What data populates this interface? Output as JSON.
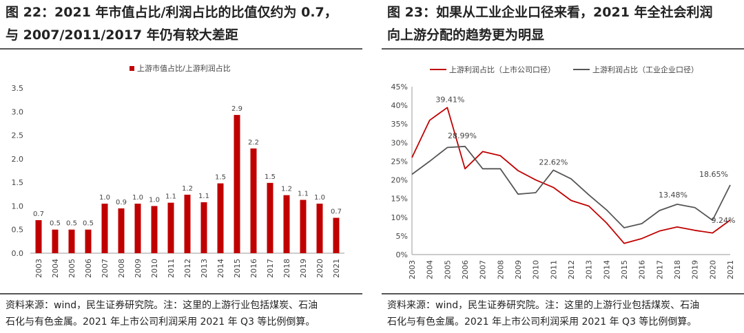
{
  "left": {
    "title_line1": "图 22：2021 年市值占比/利润占比的比值仅约为 0.7，",
    "title_line2": "与 2007/2011/2017 年仍有较大差距",
    "source_line1": "资料来源：wind，民生证券研究院。注：这里的上游行业包括煤炭、石油",
    "source_line2": "石化与有色金属。2021 年上市公司利润采用 2021 年 Q3 等比例倒算。"
  },
  "right": {
    "title_line1": "图 23：如果从工业企业口径来看，2021 年全社会利润",
    "title_line2": "向上游分配的趋势更为明显",
    "source_line1": "资料来源：wind，民生证券研究院。注：这里的上游行业包括煤炭、石油",
    "source_line2": "石化与有色金属。2021 年上市公司利润采用 2021 年 Q3 等比例倒算。"
  },
  "chart_data": [
    {
      "type": "bar",
      "categories": [
        "2003",
        "2004",
        "2005",
        "2006",
        "2007",
        "2008",
        "2009",
        "2010",
        "2011",
        "2012",
        "2013",
        "2014",
        "2015",
        "2016",
        "2017",
        "2018",
        "2019",
        "2020",
        "2021"
      ],
      "series": [
        {
          "name": "上游市值占比/上游利润占比",
          "values": [
            0.7,
            0.5,
            0.5,
            0.5,
            1.05,
            0.95,
            1.05,
            1.0,
            1.07,
            1.24,
            1.08,
            1.48,
            2.93,
            2.22,
            1.49,
            1.23,
            1.13,
            1.05,
            0.75
          ],
          "labels": [
            "0.7",
            "0.5",
            "0.5",
            "0.5",
            "1.0",
            "0.9",
            "1.0",
            "1.0",
            "1.1",
            "1.2",
            "1.1",
            "1.5",
            "2.9",
            "2.2",
            "1.5",
            "1.2",
            "1.1",
            "1.0",
            "0.7"
          ],
          "color": "#c00000"
        }
      ],
      "ylim": [
        0,
        3.5
      ],
      "yticks": [
        "0.0",
        "0.5",
        "1.0",
        "1.5",
        "2.0",
        "2.5",
        "3.0",
        "3.5"
      ],
      "grid": false,
      "legend_position": "top"
    },
    {
      "type": "line",
      "categories": [
        "2003",
        "2004",
        "2005",
        "2006",
        "2007",
        "2008",
        "2009",
        "2010",
        "2011",
        "2012",
        "2013",
        "2014",
        "2015",
        "2016",
        "2017",
        "2018",
        "2019",
        "2020",
        "2021"
      ],
      "series": [
        {
          "name": "上游利润占比（上市公司口径）",
          "values": [
            26.0,
            36.0,
            39.41,
            23.0,
            27.6,
            26.5,
            22.5,
            20.0,
            18.0,
            14.5,
            13.0,
            8.5,
            3.0,
            4.3,
            6.3,
            7.4,
            6.5,
            5.8,
            9.24
          ],
          "color": "#c00000"
        },
        {
          "name": "上游利润占比（工业企业口径）",
          "values": [
            21.5,
            25.0,
            28.7,
            28.99,
            23.0,
            23.0,
            16.2,
            16.6,
            22.62,
            20.3,
            16.0,
            12.0,
            7.2,
            8.3,
            11.8,
            13.48,
            12.6,
            9.2,
            18.65
          ],
          "color": "#555555"
        }
      ],
      "annotations": [
        {
          "text": "39.41%",
          "category": "2005",
          "value": 39.41
        },
        {
          "text": "28.99%",
          "category": "2006",
          "value": 28.99
        },
        {
          "text": "22.62%",
          "category": "2011",
          "value": 22.62
        },
        {
          "text": "13.48%",
          "category": "2018",
          "value": 13.48
        },
        {
          "text": "18.65%",
          "category": "2021",
          "value": 18.65
        },
        {
          "text": "9.24%",
          "category": "2021",
          "value": 9.24
        }
      ],
      "ylim": [
        0,
        45
      ],
      "yticks": [
        "0%",
        "5%",
        "10%",
        "15%",
        "20%",
        "25%",
        "30%",
        "35%",
        "40%",
        "45%"
      ],
      "grid": false,
      "legend_position": "top"
    }
  ]
}
